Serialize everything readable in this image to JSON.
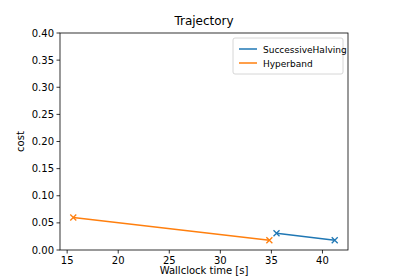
{
  "chart_data": {
    "type": "line",
    "title": "Trajectory",
    "x_label": "Wallclock time [s]",
    "y_label": "cost",
    "series": [
      {
        "name": "SuccessiveHalving",
        "color": "#1f77b4",
        "marker": "x",
        "x": [
          35.5,
          41.2
        ],
        "values": [
          0.031,
          0.018
        ]
      },
      {
        "name": "Hyperband",
        "color": "#ff7f0e",
        "marker": "x",
        "x": [
          15.6,
          34.8
        ],
        "values": [
          0.06,
          0.018
        ]
      }
    ],
    "xlim": [
      14.3,
      42.5
    ],
    "xticks": [
      15,
      20,
      25,
      30,
      35,
      40
    ],
    "ylim": [
      0,
      0.4
    ],
    "yticks": [
      {
        "value": 0,
        "label": "0.00"
      },
      {
        "value": 0.05,
        "label": "0.05"
      },
      {
        "value": 0.1,
        "label": "0.10"
      },
      {
        "value": 0.15,
        "label": "0.15"
      },
      {
        "value": 0.2,
        "label": "0.20"
      },
      {
        "value": 0.25,
        "label": "0.25"
      },
      {
        "value": 0.3,
        "label": "0.30"
      },
      {
        "value": 0.35,
        "label": "0.35"
      },
      {
        "value": 0.4,
        "label": "0.40"
      }
    ],
    "grid": false,
    "legend": "upper right"
  }
}
